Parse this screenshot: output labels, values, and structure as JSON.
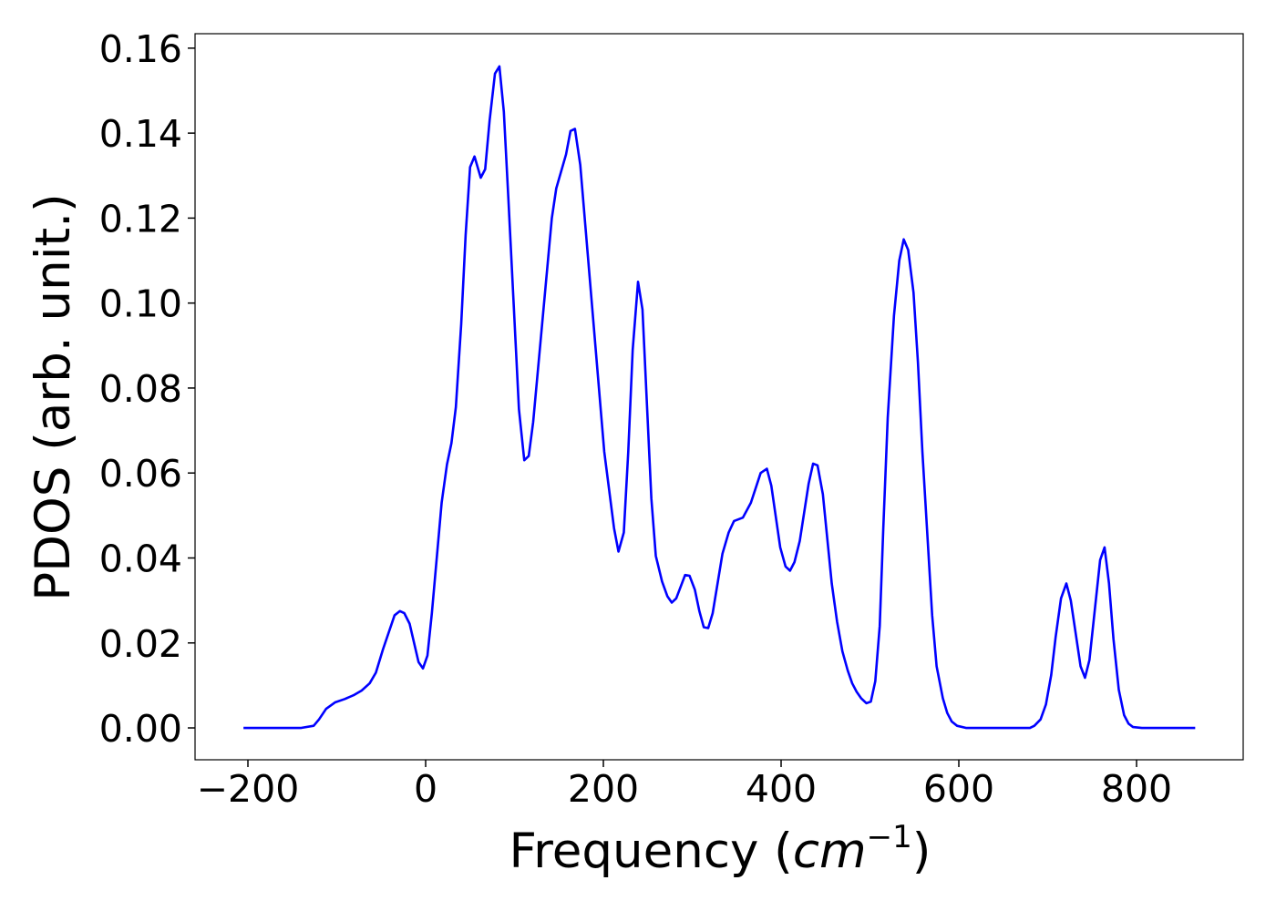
{
  "chart_data": {
    "type": "line",
    "xlabel_parts": [
      "Frequency (",
      "cm",
      "−1",
      ")"
    ],
    "ylabel": "PDOS (arb. unit.)",
    "xlim": [
      -259.5,
      920
    ],
    "ylim": [
      -0.0075,
      0.1634
    ],
    "xticks": [
      {
        "value": -200,
        "label": "−200"
      },
      0,
      200,
      400,
      600,
      800
    ],
    "yticks": [
      {
        "value": 0,
        "label": "0.00"
      },
      0.02,
      0.04,
      0.06,
      0.08,
      {
        "value": 0.1,
        "label": "0.10"
      },
      0.12,
      0.14,
      0.16
    ],
    "grid": false,
    "x": [
      -205,
      -140,
      -126,
      -120,
      -112,
      -102,
      -91,
      -81,
      -72,
      -63,
      -56,
      -48,
      -35,
      -29,
      -24,
      -18,
      -8,
      -3,
      2,
      7,
      18,
      24,
      29,
      34,
      40,
      45,
      50,
      55,
      62,
      67,
      72,
      78,
      83,
      88,
      93,
      105,
      111,
      116,
      121,
      142,
      147,
      158,
      163,
      168,
      174,
      185,
      193,
      201,
      212,
      217,
      223,
      228,
      233,
      239,
      244,
      254,
      259,
      266,
      272,
      277,
      282,
      292,
      297,
      303,
      308,
      313,
      318,
      323,
      334,
      341,
      347,
      357,
      366,
      377,
      384,
      389,
      399,
      405,
      410,
      415,
      421,
      431,
      436,
      441,
      447,
      457,
      463,
      469,
      475,
      480,
      485,
      490,
      496,
      501,
      506,
      511,
      515,
      520,
      527,
      533,
      538,
      543,
      549,
      554,
      559,
      565,
      570,
      575,
      582,
      587,
      592,
      598,
      608,
      680,
      685,
      692,
      698,
      704,
      709,
      715,
      721,
      726,
      737,
      742,
      747,
      759,
      764,
      769,
      774,
      780,
      786,
      791,
      796,
      806,
      866
    ],
    "series": [
      {
        "name": "PDOS",
        "color": "#0000ff",
        "values": [
          0,
          0,
          0.0005,
          0.002,
          0.0045,
          0.006,
          0.0068,
          0.0077,
          0.0088,
          0.0105,
          0.013,
          0.0185,
          0.0265,
          0.0275,
          0.027,
          0.0245,
          0.0155,
          0.014,
          0.017,
          0.027,
          0.053,
          0.062,
          0.067,
          0.0755,
          0.095,
          0.116,
          0.132,
          0.1345,
          0.1295,
          0.1315,
          0.143,
          0.154,
          0.1557,
          0.145,
          0.125,
          0.075,
          0.063,
          0.064,
          0.072,
          0.12,
          0.127,
          0.135,
          0.1405,
          0.141,
          0.1325,
          0.105,
          0.085,
          0.065,
          0.047,
          0.0415,
          0.046,
          0.065,
          0.089,
          0.105,
          0.0985,
          0.054,
          0.0405,
          0.0345,
          0.031,
          0.0295,
          0.0305,
          0.036,
          0.0358,
          0.0325,
          0.0275,
          0.0237,
          0.0235,
          0.027,
          0.041,
          0.046,
          0.0487,
          0.0495,
          0.053,
          0.06,
          0.061,
          0.057,
          0.0425,
          0.038,
          0.037,
          0.039,
          0.044,
          0.0575,
          0.0622,
          0.0618,
          0.055,
          0.034,
          0.025,
          0.018,
          0.0135,
          0.0105,
          0.0085,
          0.007,
          0.0058,
          0.0062,
          0.011,
          0.024,
          0.047,
          0.073,
          0.097,
          0.11,
          0.115,
          0.1125,
          0.1025,
          0.086,
          0.065,
          0.044,
          0.0265,
          0.0145,
          0.007,
          0.0035,
          0.0015,
          0.0005,
          0,
          0,
          0.0005,
          0.002,
          0.0055,
          0.0125,
          0.0215,
          0.0305,
          0.034,
          0.03,
          0.0145,
          0.0118,
          0.016,
          0.0395,
          0.0425,
          0.034,
          0.021,
          0.009,
          0.003,
          0.001,
          0.0002,
          0,
          0
        ]
      }
    ]
  }
}
